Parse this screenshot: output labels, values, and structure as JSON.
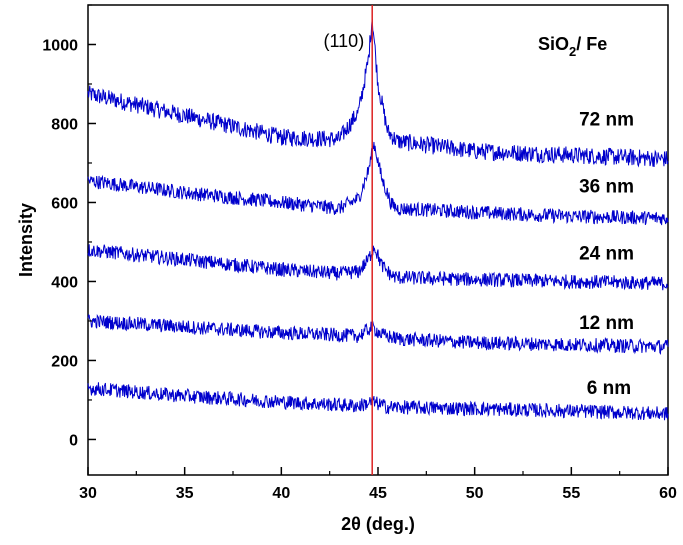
{
  "chart_data": {
    "type": "line",
    "xlabel": "2θ (deg.)",
    "ylabel": "Intensity",
    "xlim": [
      30,
      60
    ],
    "ylim": [
      -90,
      1100
    ],
    "x_ticks": [
      30,
      35,
      40,
      45,
      50,
      55,
      60
    ],
    "y_ticks": [
      0,
      200,
      400,
      600,
      800,
      1000
    ],
    "grid": false,
    "legend": "none",
    "line_color": "#0000cc",
    "reference_line": {
      "x": 44.7,
      "color": "#dd2222"
    },
    "peak_annotation": {
      "text": "(110)",
      "x": 44.7
    },
    "sample_label": {
      "main": "SiO",
      "sub": "2",
      "tail": "/ Fe"
    },
    "series": [
      {
        "name": "72 nm",
        "x": [
          30,
          35,
          40,
          43,
          44,
          44.5,
          44.7,
          45,
          45.5,
          46,
          50,
          55,
          60
        ],
        "values": [
          875,
          820,
          765,
          760,
          830,
          960,
          1070,
          900,
          780,
          755,
          730,
          720,
          710
        ]
      },
      {
        "name": "36 nm",
        "x": [
          30,
          35,
          40,
          43,
          44,
          44.5,
          44.8,
          45.2,
          45.7,
          46,
          50,
          55,
          60
        ],
        "values": [
          655,
          625,
          600,
          585,
          610,
          680,
          750,
          660,
          595,
          585,
          575,
          565,
          560
        ]
      },
      {
        "name": "24 nm",
        "x": [
          30,
          35,
          40,
          43,
          44,
          44.5,
          44.8,
          45.2,
          45.7,
          46,
          50,
          55,
          60
        ],
        "values": [
          480,
          455,
          430,
          420,
          425,
          455,
          490,
          440,
          415,
          410,
          405,
          400,
          395
        ]
      },
      {
        "name": "12 nm",
        "x": [
          30,
          35,
          40,
          44,
          44.7,
          45.2,
          46,
          50,
          55,
          60
        ],
        "values": [
          300,
          285,
          270,
          262,
          285,
          265,
          255,
          245,
          240,
          235
        ]
      },
      {
        "name": "6 nm",
        "x": [
          30,
          35,
          40,
          44,
          44.7,
          45.5,
          50,
          55,
          60
        ],
        "values": [
          130,
          110,
          95,
          85,
          95,
          82,
          78,
          72,
          65
        ]
      }
    ],
    "series_label_positions": [
      {
        "name": "72 nm",
        "x": 55.4,
        "y": 795
      },
      {
        "name": "36 nm",
        "x": 55.4,
        "y": 625
      },
      {
        "name": "24 nm",
        "x": 55.4,
        "y": 455
      },
      {
        "name": "12 nm",
        "x": 55.4,
        "y": 280
      },
      {
        "name": "6 nm",
        "x": 55.8,
        "y": 115
      }
    ]
  }
}
